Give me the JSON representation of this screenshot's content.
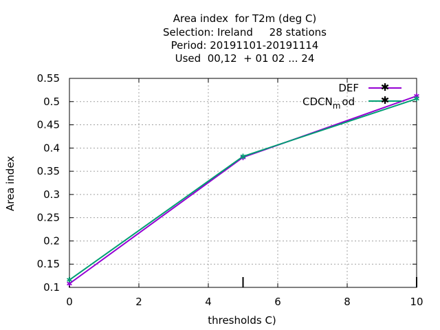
{
  "chart_data": {
    "type": "line",
    "title_lines": [
      "Area index  for T2m (deg C)",
      "Selection: Ireland     28 stations",
      "Period: 20191101-20191114",
      "Used  00,12  + 01 02 ... 24"
    ],
    "xlabel": "thresholds C)",
    "ylabel": "Area index",
    "xlim": [
      0,
      10
    ],
    "ylim": [
      0.1,
      0.55
    ],
    "xticks": [
      "0",
      "2",
      "4",
      "6",
      "8",
      "10"
    ],
    "yticks": [
      "0.1",
      "0.15",
      "0.2",
      "0.25",
      "0.3",
      "0.35",
      "0.4",
      "0.45",
      "0.5",
      "0.55"
    ],
    "grid": true,
    "legend_position": "top-right",
    "series": [
      {
        "name": "DEF",
        "color": "#9400d3",
        "x": [
          0,
          5,
          10
        ],
        "y": [
          0.108,
          0.38,
          0.512
        ]
      },
      {
        "name_main": "CDCN",
        "name_sub": "m",
        "name_tail": "od",
        "color": "#009e73",
        "x": [
          0,
          5,
          10
        ],
        "y": [
          0.116,
          0.382,
          0.506
        ]
      }
    ]
  }
}
